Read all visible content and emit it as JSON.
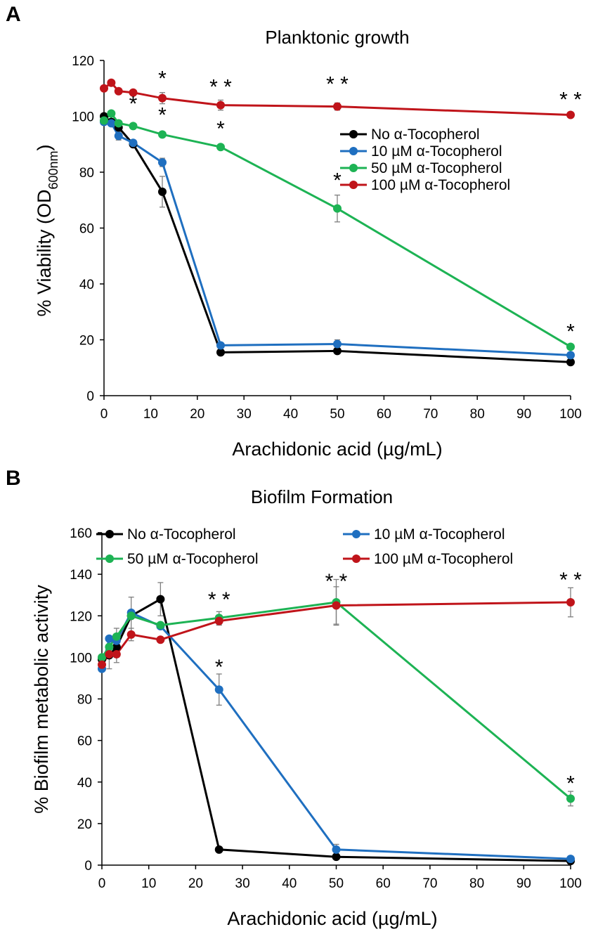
{
  "panels": [
    {
      "label": "A",
      "title": "Planktonic growth",
      "ylabel_main": "% Viability (OD",
      "ylabel_sub": "600nm",
      "ylabel_end": ")",
      "xlabel": "Arachidonic acid (µg/mL)"
    },
    {
      "label": "B",
      "title": "Biofilm Formation",
      "ylabel_main": "% Biofilm metabolic activity",
      "ylabel_sub": "",
      "ylabel_end": "",
      "xlabel": "Arachidonic acid (µg/mL)"
    }
  ],
  "chart_data": [
    {
      "type": "line",
      "title": "Planktonic growth",
      "xlabel": "Arachidonic acid (µg/mL)",
      "ylabel": "% Viability (OD600nm)",
      "xlim": [
        0,
        100
      ],
      "ylim": [
        0,
        120
      ],
      "xticks": [
        0,
        10,
        20,
        30,
        40,
        50,
        60,
        70,
        80,
        90,
        100
      ],
      "yticks": [
        0,
        20,
        40,
        60,
        80,
        100,
        120
      ],
      "legend_position": "right",
      "series": [
        {
          "name": "No α-Tocopherol",
          "color": "#000000",
          "x": [
            0,
            1.56,
            3.125,
            6.25,
            12.5,
            25,
            50,
            100
          ],
          "y": [
            100,
            98,
            96,
            90,
            73,
            15.5,
            16,
            12
          ],
          "err": [
            0,
            0,
            0,
            0,
            5.5,
            0,
            0,
            0
          ]
        },
        {
          "name": "10 µM α-Tocopherol",
          "color": "#1f6fc0",
          "x": [
            0,
            1.56,
            3.125,
            6.25,
            12.5,
            25,
            50,
            100
          ],
          "y": [
            98,
            97.5,
            93,
            90.5,
            83.5,
            18,
            18.5,
            14.5
          ],
          "err": [
            0,
            0,
            1.5,
            0,
            1.5,
            0,
            1.5,
            0
          ]
        },
        {
          "name": "50 µM α-Tocopherol",
          "color": "#1db354",
          "x": [
            0,
            1.56,
            3.125,
            6.25,
            12.5,
            25,
            50,
            100
          ],
          "y": [
            98.5,
            101,
            97.5,
            96.5,
            93.5,
            89,
            67,
            17.5
          ],
          "err": [
            0,
            0,
            0,
            0,
            0,
            0,
            4.8,
            0
          ]
        },
        {
          "name": "100 µM α-Tocopherol",
          "color": "#c0141a",
          "x": [
            0,
            1.56,
            3.125,
            6.25,
            12.5,
            25,
            50,
            100
          ],
          "y": [
            110,
            112,
            109,
            108.5,
            106.5,
            104,
            103.5,
            100.5
          ],
          "err": [
            0,
            0,
            0,
            0,
            2,
            1.8,
            1.3,
            0
          ]
        }
      ],
      "annotations": [
        {
          "x": 6.25,
          "y": 96.5,
          "text": "*"
        },
        {
          "x": 12.5,
          "y": 106.5,
          "text": "*"
        },
        {
          "x": 12.5,
          "y": 93.5,
          "text": "*"
        },
        {
          "x": 25,
          "y": 104,
          "text": "**"
        },
        {
          "x": 25,
          "y": 89,
          "text": "*"
        },
        {
          "x": 50,
          "y": 103.5,
          "text": "**"
        },
        {
          "x": 50,
          "y": 67,
          "text": "*"
        },
        {
          "x": 100,
          "y": 100.5,
          "text": "**"
        },
        {
          "x": 100,
          "y": 17.5,
          "text": "*"
        }
      ]
    },
    {
      "type": "line",
      "title": "Biofilm Formation",
      "xlabel": "Arachidonic acid (µg/mL)",
      "ylabel": "% Biofilm metabolic activity",
      "xlim": [
        0,
        100
      ],
      "ylim": [
        0,
        160
      ],
      "xticks": [
        0,
        10,
        20,
        30,
        40,
        50,
        60,
        70,
        80,
        90,
        100
      ],
      "yticks": [
        0,
        20,
        40,
        60,
        80,
        100,
        120,
        140,
        160
      ],
      "legend_position": "top",
      "series": [
        {
          "name": "No α-Tocopherol",
          "color": "#000000",
          "x": [
            0,
            1.56,
            3.125,
            6.25,
            12.5,
            25,
            50,
            100
          ],
          "y": [
            99,
            101,
            105,
            120,
            128,
            7.5,
            4,
            2
          ],
          "err": [
            0,
            0,
            5,
            0,
            8,
            0,
            0,
            0
          ]
        },
        {
          "name": "10 µM α-Tocopherol",
          "color": "#1f6fc0",
          "x": [
            0,
            1.56,
            3.125,
            6.25,
            12.5,
            25,
            50,
            100
          ],
          "y": [
            94.5,
            109,
            108,
            121.5,
            115,
            84.5,
            7.5,
            3
          ],
          "err": [
            0,
            0,
            0,
            0,
            0,
            7.5,
            2.5,
            0
          ]
        },
        {
          "name": "50 µM α-Tocopherol",
          "color": "#1db354",
          "x": [
            0,
            1.56,
            3.125,
            6.25,
            12.5,
            25,
            50,
            100
          ],
          "y": [
            100,
            105,
            110,
            120,
            115.5,
            119,
            126.5,
            32
          ],
          "err": [
            0,
            0,
            4,
            9,
            0,
            3,
            11,
            3.5
          ]
        },
        {
          "name": "100 µM α-Tocopherol",
          "color": "#c0141a",
          "x": [
            0,
            1.56,
            3.125,
            6.25,
            12.5,
            25,
            50,
            100
          ],
          "y": [
            96.5,
            101.5,
            101.5,
            111,
            108.5,
            117.5,
            125,
            126.5
          ],
          "err": [
            0,
            7,
            4,
            3,
            0,
            2,
            9,
            7
          ]
        }
      ],
      "annotations": [
        {
          "x": 25,
          "y": 119,
          "text": "**"
        },
        {
          "x": 25,
          "y": 84.5,
          "text": "*"
        },
        {
          "x": 50,
          "y": 126.5,
          "text": "**"
        },
        {
          "x": 100,
          "y": 126.5,
          "text": "**"
        },
        {
          "x": 100,
          "y": 32,
          "text": "*"
        }
      ]
    }
  ]
}
